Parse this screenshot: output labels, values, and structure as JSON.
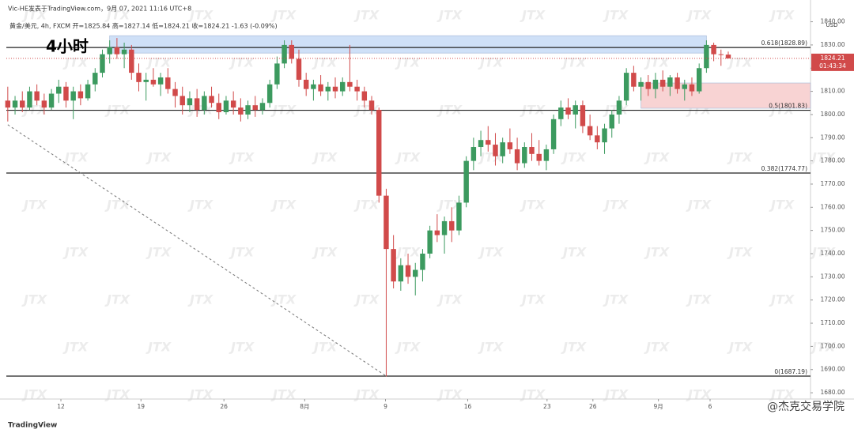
{
  "chart_data": {
    "type": "candlestick",
    "header": "Vic-HE发表于TradingView.com，9月 07, 2021 11:16 UTC+8",
    "subtitle": "黄金/美元, 4h, FXCM  开=1825.84  高=1827.14  低=1824.21  收=1824.21  -1.63 (-0.09%)",
    "title": "4小时",
    "currency": "USD",
    "watermark": "JTX",
    "brand": "TradingView",
    "credit": "@杰克交易学院",
    "up_color": "#3c9a5f",
    "down_color": "#d14a4a",
    "open": [
      1806,
      1803,
      1806,
      1803,
      1810,
      1806,
      1803,
      1809,
      1812,
      1806,
      1810,
      1807,
      1813,
      1818,
      1826,
      1829,
      1826,
      1828,
      1818,
      1814,
      1815,
      1813,
      1816,
      1811,
      1808,
      1804,
      1807,
      1802,
      1808,
      1805,
      1801,
      1806,
      1803,
      1800,
      1804,
      1802,
      1805,
      1813,
      1822,
      1830,
      1824,
      1815,
      1811,
      1813,
      1810,
      1812,
      1810,
      1814,
      1812,
      1810,
      1806,
      1802,
      1765,
      1742,
      1728,
      1735,
      1730,
      1733,
      1740,
      1750,
      1748,
      1754,
      1750,
      1762,
      1780,
      1786,
      1789,
      1787,
      1782,
      1788,
      1785,
      1779,
      1786,
      1783,
      1780,
      1785,
      1798,
      1803,
      1800,
      1804,
      1795,
      1791,
      1788,
      1794,
      1800,
      1806,
      1818,
      1812,
      1814,
      1811,
      1815,
      1812,
      1816,
      1811,
      1813,
      1810,
      1820,
      1830,
      1826,
      1825.84
    ],
    "high": [
      1812,
      1808,
      1810,
      1812,
      1813,
      1809,
      1811,
      1815,
      1814,
      1812,
      1813,
      1815,
      1820,
      1828,
      1832,
      1833,
      1831,
      1830,
      1822,
      1818,
      1820,
      1818,
      1820,
      1814,
      1812,
      1810,
      1811,
      1810,
      1812,
      1809,
      1808,
      1810,
      1807,
      1806,
      1808,
      1807,
      1815,
      1825,
      1832,
      1832,
      1828,
      1818,
      1815,
      1817,
      1814,
      1816,
      1816,
      1830,
      1815,
      1812,
      1808,
      1803,
      1768,
      1748,
      1738,
      1740,
      1736,
      1742,
      1752,
      1757,
      1756,
      1760,
      1765,
      1782,
      1790,
      1793,
      1795,
      1792,
      1790,
      1794,
      1790,
      1788,
      1792,
      1789,
      1787,
      1800,
      1806,
      1807,
      1806,
      1806,
      1800,
      1795,
      1796,
      1802,
      1808,
      1820,
      1821,
      1816,
      1817,
      1818,
      1819,
      1817,
      1818,
      1815,
      1816,
      1822,
      1832,
      1831,
      1828,
      1827.14
    ],
    "low": [
      1797,
      1800,
      1801,
      1802,
      1804,
      1800,
      1802,
      1805,
      1803,
      1798,
      1804,
      1806,
      1810,
      1816,
      1822,
      1824,
      1820,
      1815,
      1810,
      1806,
      1812,
      1808,
      1809,
      1803,
      1800,
      1801,
      1799,
      1800,
      1803,
      1798,
      1800,
      1800,
      1797,
      1798,
      1799,
      1800,
      1803,
      1811,
      1820,
      1822,
      1812,
      1808,
      1806,
      1808,
      1806,
      1807,
      1808,
      1810,
      1806,
      1803,
      1800,
      1762,
      1687,
      1725,
      1724,
      1727,
      1722,
      1728,
      1738,
      1745,
      1740,
      1745,
      1748,
      1760,
      1776,
      1782,
      1784,
      1778,
      1779,
      1783,
      1776,
      1777,
      1780,
      1778,
      1776,
      1783,
      1795,
      1798,
      1794,
      1792,
      1789,
      1785,
      1783,
      1790,
      1796,
      1804,
      1810,
      1806,
      1808,
      1807,
      1810,
      1808,
      1809,
      1806,
      1808,
      1809,
      1818,
      1823,
      1821,
      1824.21
    ],
    "close": [
      1803,
      1806,
      1803,
      1810,
      1806,
      1803,
      1809,
      1812,
      1806,
      1810,
      1807,
      1813,
      1818,
      1826,
      1829,
      1826,
      1828,
      1818,
      1814,
      1815,
      1813,
      1816,
      1811,
      1808,
      1804,
      1807,
      1802,
      1808,
      1805,
      1801,
      1806,
      1803,
      1800,
      1804,
      1802,
      1805,
      1813,
      1822,
      1830,
      1824,
      1815,
      1811,
      1813,
      1810,
      1812,
      1810,
      1814,
      1812,
      1810,
      1806,
      1802,
      1765,
      1742,
      1728,
      1735,
      1730,
      1733,
      1740,
      1750,
      1748,
      1754,
      1750,
      1762,
      1780,
      1786,
      1789,
      1787,
      1782,
      1788,
      1785,
      1779,
      1786,
      1783,
      1780,
      1785,
      1798,
      1803,
      1800,
      1804,
      1795,
      1791,
      1788,
      1794,
      1800,
      1806,
      1818,
      1812,
      1814,
      1811,
      1815,
      1812,
      1816,
      1811,
      1813,
      1810,
      1820,
      1830,
      1826,
      1825.84,
      1824.21
    ],
    "last_price": 1824.21,
    "countdown": "01:43:34",
    "levels": [
      {
        "value": 1828.89,
        "label": "0.618(1828.89)"
      },
      {
        "value": 1801.83,
        "label": "0.5(1801.83)"
      },
      {
        "value": 1774.77,
        "label": "0.382(1774.77)"
      },
      {
        "value": 1687.19,
        "label": "0(1687.19)"
      }
    ],
    "zones": [
      {
        "x": [
          14,
          96
        ],
        "y": [
          1826.5,
          1834
        ],
        "color": "#cfe0f7"
      },
      {
        "x": [
          87,
          110.3
        ],
        "y": [
          1802.7,
          1813.6
        ],
        "color": "#f8d3d3"
      }
    ],
    "trendline": {
      "x": [
        0,
        52
      ],
      "y": [
        1795.6,
        1687.19
      ]
    },
    "xlim": [
      -0.2,
      110.3
    ],
    "ylim": [
      1677.3,
      1845.3
    ],
    "xticks": [
      {
        "value": 7.3,
        "label": "12"
      },
      {
        "value": 18.3,
        "label": "19"
      },
      {
        "value": 29.7,
        "label": "26"
      },
      {
        "value": 40.8,
        "label": "8月"
      },
      {
        "value": 51.9,
        "label": "9"
      },
      {
        "value": 63.2,
        "label": "16"
      },
      {
        "value": 74.1,
        "label": "23"
      },
      {
        "value": 80.4,
        "label": "26"
      },
      {
        "value": 89.4,
        "label": "9月"
      },
      {
        "value": 96.5,
        "label": "6"
      }
    ],
    "yticks": [
      {
        "value": 1680,
        "label": "1680.00"
      },
      {
        "value": 1690,
        "label": "1690.00"
      },
      {
        "value": 1700,
        "label": "1700.00"
      },
      {
        "value": 1710,
        "label": "1710.00"
      },
      {
        "value": 1720,
        "label": "1720.00"
      },
      {
        "value": 1730,
        "label": "1730.00"
      },
      {
        "value": 1740,
        "label": "1740.00"
      },
      {
        "value": 1750,
        "label": "1750.00"
      },
      {
        "value": 1760,
        "label": "1760.00"
      },
      {
        "value": 1770,
        "label": "1770.00"
      },
      {
        "value": 1780,
        "label": "1780.00"
      },
      {
        "value": 1790,
        "label": "1790.00"
      },
      {
        "value": 1800,
        "label": "1800.00"
      },
      {
        "value": 1810,
        "label": "1810.00"
      },
      {
        "value": 1820,
        "label": "1820.00"
      },
      {
        "value": 1830,
        "label": "1830.00"
      },
      {
        "value": 1840,
        "label": "1840.00"
      }
    ],
    "grid": false
  }
}
